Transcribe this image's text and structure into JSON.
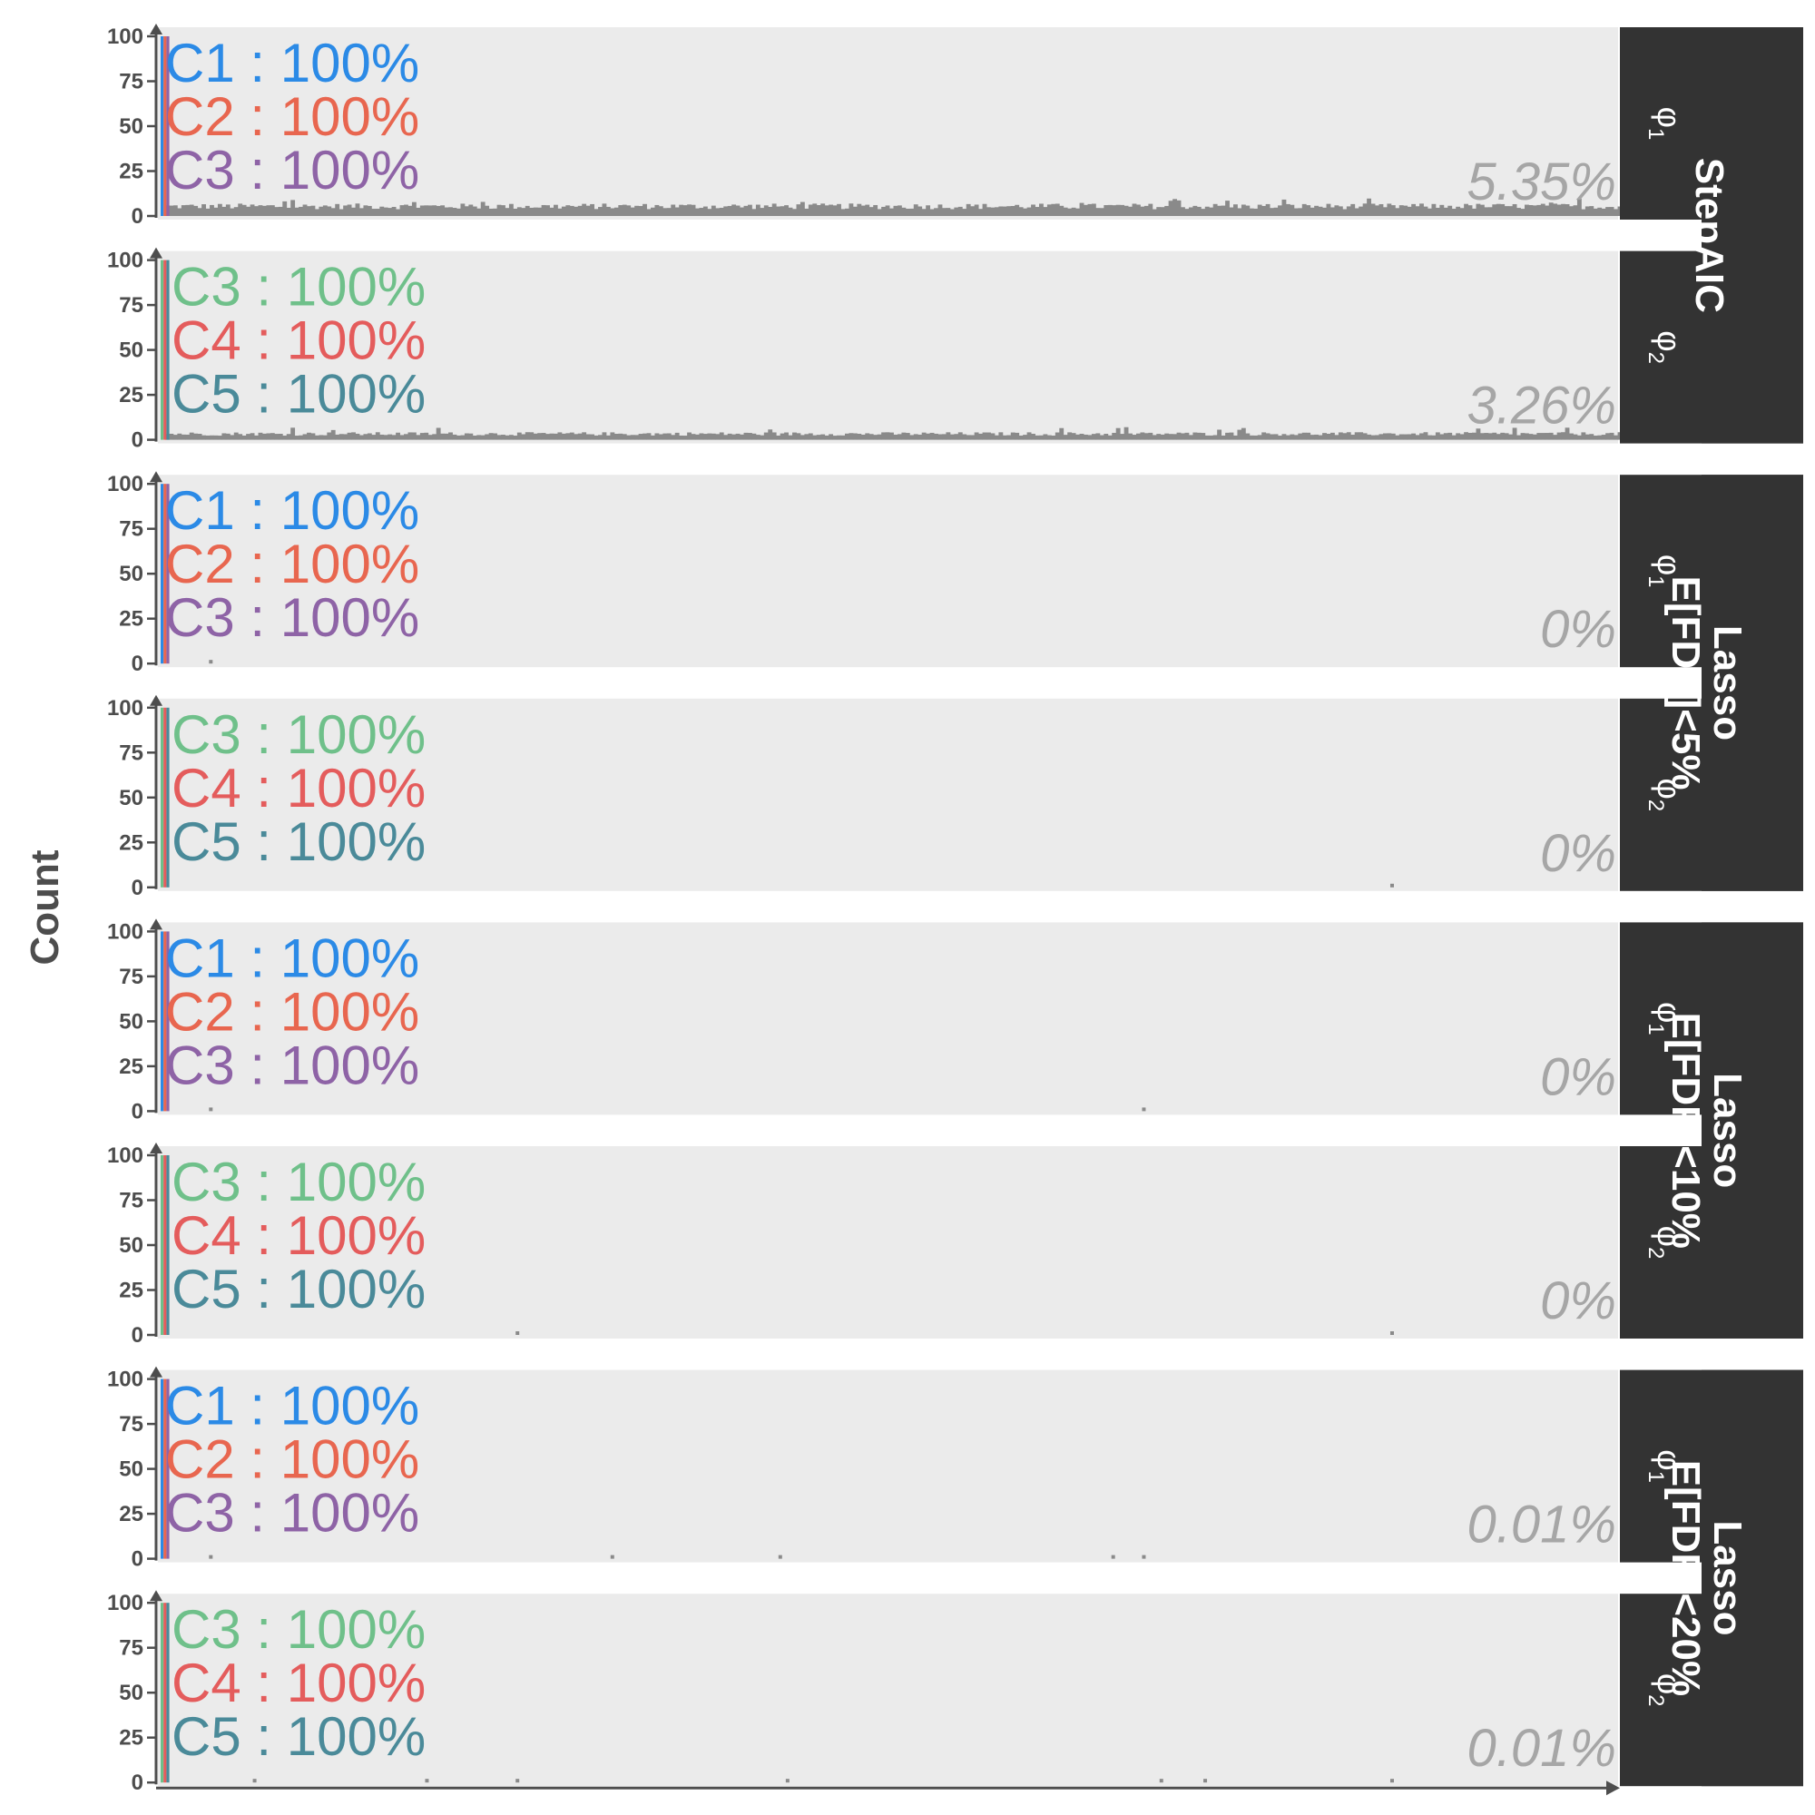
{
  "chart_data": {
    "type": "bar",
    "ylabel": "Count",
    "xlabel": "",
    "ylim": [
      0,
      100
    ],
    "yticks": [
      0,
      25,
      50,
      75,
      100
    ],
    "grid": false,
    "legend_placement": "top-left inside each panel",
    "colors": {
      "C1": "#2b8ae6",
      "C2": "#e8664f",
      "C3_phi1": "#8e63a6",
      "C3_phi2": "#6fc08a",
      "C4": "#e45c5c",
      "C5": "#4a8a99",
      "noise_bars": "#8a8a8a",
      "panel_bg": "#ebebeb",
      "strip_bg": "#333333",
      "pct_label": "#a6a6a6"
    },
    "methods": [
      {
        "label": "StepAIC",
        "panels": [
          {
            "phi_main": "φ",
            "phi_sub": "1",
            "legend": [
              {
                "name": "C1",
                "value": "100%",
                "color": "#2b8ae6"
              },
              {
                "name": "C2",
                "value": "100%",
                "color": "#e8664f"
              },
              {
                "name": "C3",
                "value": "100%",
                "color": "#8e63a6"
              }
            ],
            "pct": "5.35%",
            "noise_level": 5.35
          },
          {
            "phi_main": "φ",
            "phi_sub": "2",
            "legend": [
              {
                "name": "C3",
                "value": "100%",
                "color": "#6fc08a"
              },
              {
                "name": "C4",
                "value": "100%",
                "color": "#e45c5c"
              },
              {
                "name": "C5",
                "value": "100%",
                "color": "#4a8a99"
              }
            ],
            "pct": "3.26%",
            "noise_level": 3.26
          }
        ]
      },
      {
        "label": "Lasso\nE[FDP]<5%",
        "panels": [
          {
            "phi_main": "φ",
            "phi_sub": "1",
            "legend": [
              {
                "name": "C1",
                "value": "100%",
                "color": "#2b8ae6"
              },
              {
                "name": "C2",
                "value": "100%",
                "color": "#e8664f"
              },
              {
                "name": "C3",
                "value": "100%",
                "color": "#8e63a6"
              }
            ],
            "pct": "0%",
            "noise_level": 0,
            "sparse_x": [
              0.035
            ]
          },
          {
            "phi_main": "φ",
            "phi_sub": "2",
            "legend": [
              {
                "name": "C3",
                "value": "100%",
                "color": "#6fc08a"
              },
              {
                "name": "C4",
                "value": "100%",
                "color": "#e45c5c"
              },
              {
                "name": "C5",
                "value": "100%",
                "color": "#4a8a99"
              }
            ],
            "pct": "0%",
            "noise_level": 0,
            "sparse_x": [
              0.844
            ]
          }
        ]
      },
      {
        "label": "Lasso\nE[FDP]<10%",
        "panels": [
          {
            "phi_main": "φ",
            "phi_sub": "1",
            "legend": [
              {
                "name": "C1",
                "value": "100%",
                "color": "#2b8ae6"
              },
              {
                "name": "C2",
                "value": "100%",
                "color": "#e8664f"
              },
              {
                "name": "C3",
                "value": "100%",
                "color": "#8e63a6"
              }
            ],
            "pct": "0%",
            "noise_level": 0,
            "sparse_x": [
              0.035,
              0.674
            ]
          },
          {
            "phi_main": "φ",
            "phi_sub": "2",
            "legend": [
              {
                "name": "C3",
                "value": "100%",
                "color": "#6fc08a"
              },
              {
                "name": "C4",
                "value": "100%",
                "color": "#e45c5c"
              },
              {
                "name": "C5",
                "value": "100%",
                "color": "#4a8a99"
              }
            ],
            "pct": "0%",
            "noise_level": 0,
            "sparse_x": [
              0.245,
              0.844
            ]
          }
        ]
      },
      {
        "label": "Lasso\nE[FDP]<20%",
        "panels": [
          {
            "phi_main": "φ",
            "phi_sub": "1",
            "legend": [
              {
                "name": "C1",
                "value": "100%",
                "color": "#2b8ae6"
              },
              {
                "name": "C2",
                "value": "100%",
                "color": "#e8664f"
              },
              {
                "name": "C3",
                "value": "100%",
                "color": "#8e63a6"
              }
            ],
            "pct": "0.01%",
            "noise_level": 0,
            "sparse_x": [
              0.035,
              0.31,
              0.425,
              0.653,
              0.674
            ]
          },
          {
            "phi_main": "φ",
            "phi_sub": "2",
            "legend": [
              {
                "name": "C3",
                "value": "100%",
                "color": "#6fc08a"
              },
              {
                "name": "C4",
                "value": "100%",
                "color": "#e45c5c"
              },
              {
                "name": "C5",
                "value": "100%",
                "color": "#4a8a99"
              }
            ],
            "pct": "0.01%",
            "noise_level": 0,
            "sparse_x": [
              0.065,
              0.183,
              0.245,
              0.43,
              0.686,
              0.716,
              0.844
            ]
          }
        ]
      }
    ]
  }
}
